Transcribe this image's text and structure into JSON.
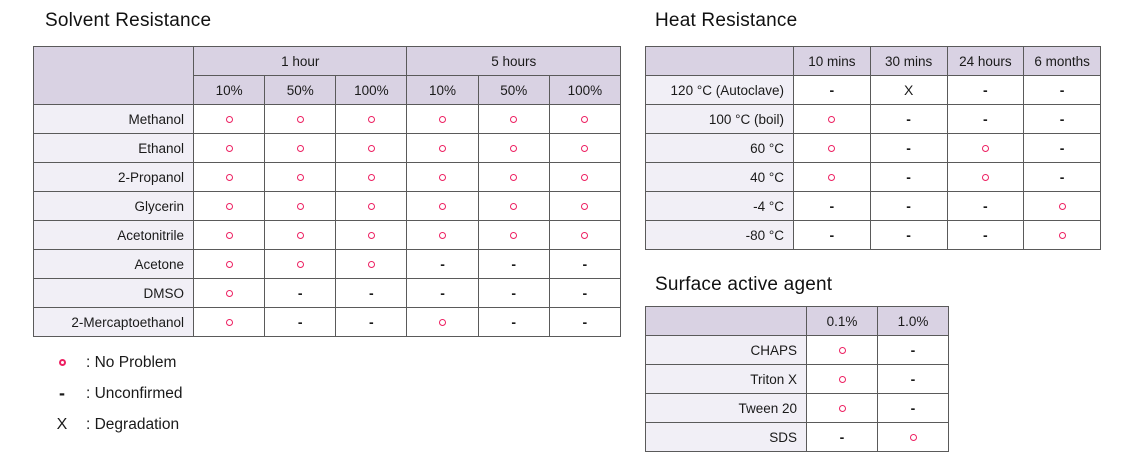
{
  "colors": {
    "accent_pink": "#ed2162",
    "header_bg": "#d9d2e3",
    "label_bg": "#f1eff6",
    "border_gray": "#5a5a5a"
  },
  "symbols": {
    "no_problem": "o",
    "unconfirmed": "-",
    "degradation": "X"
  },
  "tables": {
    "solvent": {
      "title": "Solvent Resistance",
      "col_groups": [
        {
          "label": "1 hour",
          "span": 3
        },
        {
          "label": "5 hours",
          "span": 3
        }
      ],
      "columns": [
        "10%",
        "50%",
        "100%",
        "10%",
        "50%",
        "100%"
      ],
      "rows": [
        {
          "label": "Methanol",
          "values": [
            "o",
            "o",
            "o",
            "o",
            "o",
            "o"
          ]
        },
        {
          "label": "Ethanol",
          "values": [
            "o",
            "o",
            "o",
            "o",
            "o",
            "o"
          ]
        },
        {
          "label": "2-Propanol",
          "values": [
            "o",
            "o",
            "o",
            "o",
            "o",
            "o"
          ]
        },
        {
          "label": "Glycerin",
          "values": [
            "o",
            "o",
            "o",
            "o",
            "o",
            "o"
          ]
        },
        {
          "label": "Acetonitrile",
          "values": [
            "o",
            "o",
            "o",
            "o",
            "o",
            "o"
          ]
        },
        {
          "label": "Acetone",
          "values": [
            "o",
            "o",
            "o",
            "-",
            "-",
            "-"
          ]
        },
        {
          "label": "DMSO",
          "values": [
            "o",
            "-",
            "-",
            "-",
            "-",
            "-"
          ]
        },
        {
          "label": "2-Mercaptoethanol",
          "values": [
            "o",
            "-",
            "-",
            "o",
            "-",
            "-"
          ]
        }
      ]
    },
    "heat": {
      "title": "Heat Resistance",
      "columns": [
        "10 mins",
        "30 mins",
        "24 hours",
        "6 months"
      ],
      "rows": [
        {
          "label": "120 °C (Autoclave)",
          "values": [
            "-",
            "X",
            "-",
            "-"
          ]
        },
        {
          "label": "100 °C (boil)",
          "values": [
            "o",
            "-",
            "-",
            "-"
          ]
        },
        {
          "label": "60 °C",
          "values": [
            "o",
            "-",
            "o",
            "-"
          ]
        },
        {
          "label": "40 °C",
          "values": [
            "o",
            "-",
            "o",
            "-"
          ]
        },
        {
          "label": "-4 °C",
          "values": [
            "-",
            "-",
            "-",
            "o"
          ]
        },
        {
          "label": "-80 °C",
          "values": [
            "-",
            "-",
            "-",
            "o"
          ]
        }
      ]
    },
    "surfactant": {
      "title": "Surface active agent",
      "columns": [
        "0.1%",
        "1.0%"
      ],
      "rows": [
        {
          "label": "CHAPS",
          "values": [
            "o",
            "-"
          ]
        },
        {
          "label": "Triton X",
          "values": [
            "o",
            "-"
          ]
        },
        {
          "label": "Tween 20",
          "values": [
            "o",
            "-"
          ]
        },
        {
          "label": "SDS",
          "values": [
            "-",
            "o"
          ]
        }
      ]
    }
  },
  "legend": {
    "items": [
      {
        "symbol": "o",
        "text": ": No Problem"
      },
      {
        "symbol": "-",
        "text": ": Unconfirmed"
      },
      {
        "symbol": "X",
        "text": ": Degradation"
      }
    ]
  }
}
